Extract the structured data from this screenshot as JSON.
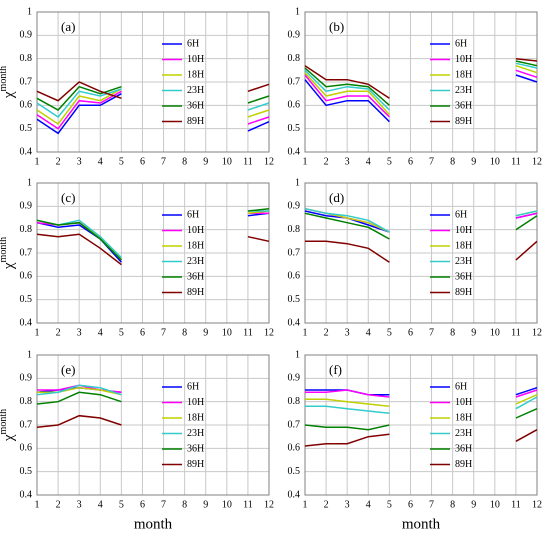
{
  "chart_data": [
    {
      "type": "line",
      "label": "(a)",
      "ylabel": "χ",
      "ylabel_sup": "month",
      "x": [
        1,
        2,
        3,
        4,
        5,
        6,
        7,
        8,
        9,
        10,
        11,
        12
      ],
      "xlim": [
        1,
        12
      ],
      "xticks": [
        1,
        2,
        3,
        4,
        5,
        6,
        7,
        8,
        9,
        10,
        11,
        12
      ],
      "ylim": [
        0.4,
        1
      ],
      "yticks": [
        0.4,
        0.5,
        0.6,
        0.7,
        0.8,
        0.9,
        1
      ],
      "grid": true,
      "series": [
        {
          "name": "6H",
          "color": "#0000ff",
          "values": [
            0.54,
            0.48,
            0.6,
            0.6,
            0.65,
            null,
            null,
            null,
            null,
            null,
            0.49,
            0.53
          ]
        },
        {
          "name": "10H",
          "color": "#ff00ff",
          "values": [
            0.56,
            0.5,
            0.62,
            0.61,
            0.66,
            null,
            null,
            null,
            null,
            null,
            0.52,
            0.55
          ]
        },
        {
          "name": "18H",
          "color": "#c0d000",
          "values": [
            0.58,
            0.52,
            0.64,
            0.62,
            0.67,
            null,
            null,
            null,
            null,
            null,
            0.55,
            0.58
          ]
        },
        {
          "name": "23H",
          "color": "#33cccc",
          "values": [
            0.61,
            0.55,
            0.66,
            0.64,
            0.67,
            null,
            null,
            null,
            null,
            null,
            0.58,
            0.61
          ]
        },
        {
          "name": "36H",
          "color": "#008000",
          "values": [
            0.63,
            0.58,
            0.68,
            0.65,
            0.68,
            null,
            null,
            null,
            null,
            null,
            0.61,
            0.64
          ]
        },
        {
          "name": "89H",
          "color": "#800000",
          "values": [
            0.66,
            0.62,
            0.7,
            0.66,
            0.63,
            null,
            null,
            null,
            null,
            null,
            0.66,
            0.69
          ]
        }
      ]
    },
    {
      "type": "line",
      "label": "(b)",
      "x": [
        1,
        2,
        3,
        4,
        5,
        6,
        7,
        8,
        9,
        10,
        11,
        12
      ],
      "xlim": [
        1,
        12
      ],
      "xticks": [
        1,
        2,
        3,
        4,
        5,
        6,
        7,
        8,
        9,
        10,
        11,
        12
      ],
      "ylim": [
        0.4,
        1
      ],
      "yticks": [
        0.4,
        0.5,
        0.6,
        0.7,
        0.8,
        0.9,
        1
      ],
      "grid": true,
      "series": [
        {
          "name": "6H",
          "color": "#0000ff",
          "values": [
            0.71,
            0.6,
            0.62,
            0.62,
            0.53,
            null,
            null,
            null,
            null,
            null,
            0.73,
            0.7
          ]
        },
        {
          "name": "10H",
          "color": "#ff00ff",
          "values": [
            0.73,
            0.62,
            0.64,
            0.64,
            0.55,
            null,
            null,
            null,
            null,
            null,
            0.75,
            0.72
          ]
        },
        {
          "name": "18H",
          "color": "#c0d000",
          "values": [
            0.74,
            0.64,
            0.66,
            0.66,
            0.56,
            null,
            null,
            null,
            null,
            null,
            0.77,
            0.74
          ]
        },
        {
          "name": "23H",
          "color": "#33cccc",
          "values": [
            0.75,
            0.66,
            0.68,
            0.67,
            0.58,
            null,
            null,
            null,
            null,
            null,
            0.78,
            0.76
          ]
        },
        {
          "name": "36H",
          "color": "#008000",
          "values": [
            0.76,
            0.68,
            0.69,
            0.68,
            0.6,
            null,
            null,
            null,
            null,
            null,
            0.79,
            0.77
          ]
        },
        {
          "name": "89H",
          "color": "#800000",
          "values": [
            0.77,
            0.71,
            0.71,
            0.69,
            0.63,
            null,
            null,
            null,
            null,
            null,
            0.8,
            0.79
          ]
        }
      ]
    },
    {
      "type": "line",
      "label": "(c)",
      "ylabel": "χ",
      "ylabel_sup": "month",
      "x": [
        1,
        2,
        3,
        4,
        5,
        6,
        7,
        8,
        9,
        10,
        11,
        12
      ],
      "xlim": [
        1,
        12
      ],
      "xticks": [
        1,
        2,
        3,
        4,
        5,
        6,
        7,
        8,
        9,
        10,
        11,
        12
      ],
      "ylim": [
        0.4,
        1
      ],
      "yticks": [
        0.4,
        0.5,
        0.6,
        0.7,
        0.8,
        0.9,
        1
      ],
      "grid": true,
      "series": [
        {
          "name": "6H",
          "color": "#0000ff",
          "values": [
            0.83,
            0.81,
            0.82,
            0.76,
            0.66,
            null,
            null,
            null,
            null,
            null,
            0.86,
            0.87
          ]
        },
        {
          "name": "10H",
          "color": "#ff00ff",
          "values": [
            0.83,
            0.82,
            0.83,
            0.77,
            0.67,
            null,
            null,
            null,
            null,
            null,
            0.87,
            0.87
          ]
        },
        {
          "name": "18H",
          "color": "#c0d000",
          "values": [
            0.84,
            0.82,
            0.83,
            0.77,
            0.67,
            null,
            null,
            null,
            null,
            null,
            0.87,
            0.88
          ]
        },
        {
          "name": "23H",
          "color": "#33cccc",
          "values": [
            0.84,
            0.82,
            0.84,
            0.77,
            0.68,
            null,
            null,
            null,
            null,
            null,
            0.88,
            0.88
          ]
        },
        {
          "name": "36H",
          "color": "#008000",
          "values": [
            0.84,
            0.82,
            0.83,
            0.76,
            0.67,
            null,
            null,
            null,
            null,
            null,
            0.88,
            0.89
          ]
        },
        {
          "name": "89H",
          "color": "#800000",
          "values": [
            0.78,
            0.77,
            0.78,
            0.72,
            0.65,
            null,
            null,
            null,
            null,
            null,
            0.77,
            0.75
          ]
        }
      ]
    },
    {
      "type": "line",
      "label": "(d)",
      "x": [
        1,
        2,
        3,
        4,
        5,
        6,
        7,
        8,
        9,
        10,
        11,
        12
      ],
      "xlim": [
        1,
        12
      ],
      "xticks": [
        1,
        2,
        3,
        4,
        5,
        6,
        7,
        8,
        9,
        10,
        11,
        12
      ],
      "ylim": [
        0.4,
        1
      ],
      "yticks": [
        0.4,
        0.5,
        0.6,
        0.7,
        0.8,
        0.9,
        1
      ],
      "grid": true,
      "series": [
        {
          "name": "6H",
          "color": "#0000ff",
          "values": [
            0.88,
            0.86,
            0.85,
            0.82,
            0.79,
            null,
            null,
            null,
            null,
            null,
            0.85,
            0.87
          ]
        },
        {
          "name": "10H",
          "color": "#ff00ff",
          "values": [
            0.89,
            0.87,
            0.85,
            0.83,
            0.79,
            null,
            null,
            null,
            null,
            null,
            0.85,
            0.87
          ]
        },
        {
          "name": "18H",
          "color": "#c0d000",
          "values": [
            0.89,
            0.87,
            0.85,
            0.83,
            0.79,
            null,
            null,
            null,
            null,
            null,
            0.86,
            0.88
          ]
        },
        {
          "name": "23H",
          "color": "#33cccc",
          "values": [
            0.89,
            0.87,
            0.86,
            0.84,
            0.79,
            null,
            null,
            null,
            null,
            null,
            0.86,
            0.88
          ]
        },
        {
          "name": "36H",
          "color": "#008000",
          "values": [
            0.87,
            0.85,
            0.83,
            0.81,
            0.76,
            null,
            null,
            null,
            null,
            null,
            0.8,
            0.86
          ]
        },
        {
          "name": "89H",
          "color": "#800000",
          "values": [
            0.75,
            0.75,
            0.74,
            0.72,
            0.66,
            null,
            null,
            null,
            null,
            null,
            0.67,
            0.75
          ]
        }
      ]
    },
    {
      "type": "line",
      "label": "(e)",
      "ylabel": "χ",
      "ylabel_sup": "month",
      "xlabel": "month",
      "x": [
        1,
        2,
        3,
        4,
        5,
        6,
        7,
        8,
        9,
        10,
        11,
        12
      ],
      "xlim": [
        1,
        12
      ],
      "xticks": [
        1,
        2,
        3,
        4,
        5,
        6,
        7,
        8,
        9,
        10,
        11,
        12
      ],
      "ylim": [
        0.4,
        1
      ],
      "yticks": [
        0.4,
        0.5,
        0.6,
        0.7,
        0.8,
        0.9,
        1
      ],
      "grid": true,
      "series": [
        {
          "name": "6H",
          "color": "#0000ff",
          "values": [
            0.84,
            0.85,
            0.86,
            0.85,
            0.84,
            null,
            null,
            null,
            null,
            null,
            null,
            null
          ]
        },
        {
          "name": "10H",
          "color": "#ff00ff",
          "values": [
            0.85,
            0.85,
            0.87,
            0.85,
            0.84,
            null,
            null,
            null,
            null,
            null,
            null,
            null
          ]
        },
        {
          "name": "18H",
          "color": "#c0d000",
          "values": [
            0.84,
            0.84,
            0.86,
            0.85,
            0.83,
            null,
            null,
            null,
            null,
            null,
            null,
            null
          ]
        },
        {
          "name": "23H",
          "color": "#33cccc",
          "values": [
            0.83,
            0.84,
            0.87,
            0.86,
            0.83,
            null,
            null,
            null,
            null,
            null,
            null,
            null
          ]
        },
        {
          "name": "36H",
          "color": "#008000",
          "values": [
            0.79,
            0.8,
            0.84,
            0.83,
            0.8,
            null,
            null,
            null,
            null,
            null,
            null,
            null
          ]
        },
        {
          "name": "89H",
          "color": "#800000",
          "values": [
            0.69,
            0.7,
            0.74,
            0.73,
            0.7,
            null,
            null,
            null,
            null,
            null,
            null,
            null
          ]
        }
      ]
    },
    {
      "type": "line",
      "label": "(f)",
      "xlabel": "month",
      "x": [
        1,
        2,
        3,
        4,
        5,
        6,
        7,
        8,
        9,
        10,
        11,
        12
      ],
      "xlim": [
        1,
        12
      ],
      "xticks": [
        1,
        2,
        3,
        4,
        5,
        6,
        7,
        8,
        9,
        10,
        11,
        12
      ],
      "ylim": [
        0.4,
        1
      ],
      "yticks": [
        0.4,
        0.5,
        0.6,
        0.7,
        0.8,
        0.9,
        1
      ],
      "grid": true,
      "series": [
        {
          "name": "6H",
          "color": "#0000ff",
          "values": [
            0.85,
            0.85,
            0.85,
            0.83,
            0.83,
            null,
            null,
            null,
            null,
            null,
            0.83,
            0.86
          ]
        },
        {
          "name": "10H",
          "color": "#ff00ff",
          "values": [
            0.84,
            0.84,
            0.85,
            0.83,
            0.82,
            null,
            null,
            null,
            null,
            null,
            0.82,
            0.85
          ]
        },
        {
          "name": "18H",
          "color": "#c0d000",
          "values": [
            0.81,
            0.81,
            0.8,
            0.79,
            0.78,
            null,
            null,
            null,
            null,
            null,
            0.79,
            0.83
          ]
        },
        {
          "name": "23H",
          "color": "#33cccc",
          "values": [
            0.78,
            0.78,
            0.77,
            0.76,
            0.75,
            null,
            null,
            null,
            null,
            null,
            0.77,
            0.82
          ]
        },
        {
          "name": "36H",
          "color": "#008000",
          "values": [
            0.7,
            0.69,
            0.69,
            0.68,
            0.7,
            null,
            null,
            null,
            null,
            null,
            0.73,
            0.77
          ]
        },
        {
          "name": "89H",
          "color": "#800000",
          "values": [
            0.61,
            0.62,
            0.62,
            0.65,
            0.66,
            null,
            null,
            null,
            null,
            null,
            0.63,
            0.68
          ]
        }
      ]
    }
  ]
}
